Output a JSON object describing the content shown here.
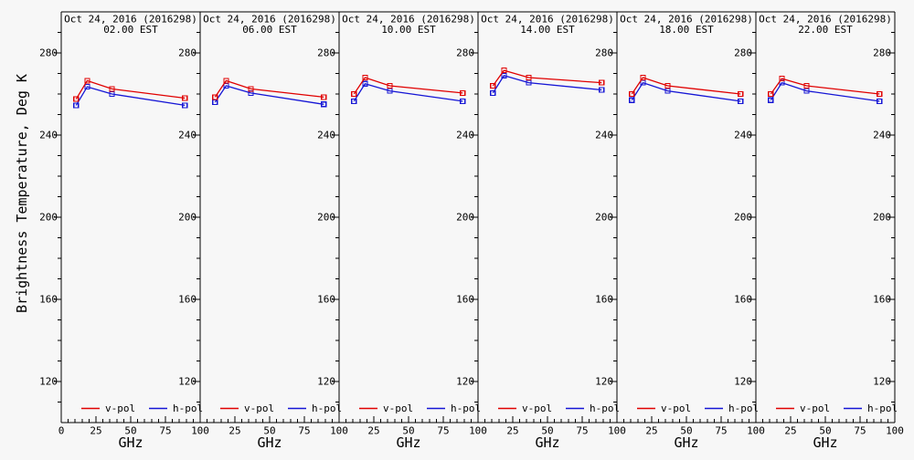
{
  "figure": {
    "y_axis_title": "Brightness Temperature, Deg K",
    "x_axis_title": "GHz",
    "date_title": "Oct 24, 2016 (2016298)",
    "background": "#f7f7f7",
    "colors": {
      "axis": "#000000",
      "v_pol": "#e00000",
      "h_pol": "#1515d5"
    },
    "legend": [
      {
        "label": "v-pol",
        "color_key": "v_pol"
      },
      {
        "label": "h-pol",
        "color_key": "h_pol"
      }
    ],
    "y_tick_labels": [
      "280",
      "240",
      "200",
      "160",
      "120"
    ],
    "x_tick_labels": [
      "0",
      "25",
      "50",
      "75",
      "100"
    ]
  },
  "chart_data": [
    {
      "type": "line",
      "title": "Oct 24, 2016 (2016298)",
      "subtitle": "02.00 EST",
      "xlabel": "GHz",
      "ylabel": "Brightness Temperature, Deg K",
      "x": [
        10.7,
        18.7,
        36.5,
        89
      ],
      "series": [
        {
          "name": "v-pol",
          "color": "#e00000",
          "values": [
            257.5,
            266.5,
            262.5,
            258
          ]
        },
        {
          "name": "h-pol",
          "color": "#1515d5",
          "values": [
            254.5,
            263.5,
            260,
            254.5
          ]
        }
      ],
      "xlim": [
        0,
        100
      ],
      "ylim": [
        100,
        300
      ],
      "x_major_ticks": [
        0,
        25,
        50,
        75,
        100
      ],
      "y_major_ticks": [
        120,
        160,
        200,
        240,
        280
      ],
      "x_minor_step": 5,
      "y_minor_step": 10,
      "legend_position": "bottom-inside",
      "grid": false
    },
    {
      "type": "line",
      "title": "Oct 24, 2016 (2016298)",
      "subtitle": "06.00 EST",
      "xlabel": "GHz",
      "ylabel": "Brightness Temperature, Deg K",
      "x": [
        10.7,
        18.7,
        36.5,
        89
      ],
      "series": [
        {
          "name": "v-pol",
          "color": "#e00000",
          "values": [
            258.5,
            266.5,
            262.5,
            258.5
          ]
        },
        {
          "name": "h-pol",
          "color": "#1515d5",
          "values": [
            256,
            264,
            260.5,
            255
          ]
        }
      ],
      "xlim": [
        0,
        100
      ],
      "ylim": [
        100,
        300
      ],
      "x_major_ticks": [
        0,
        25,
        50,
        75,
        100
      ],
      "y_major_ticks": [
        120,
        160,
        200,
        240,
        280
      ],
      "x_minor_step": 5,
      "y_minor_step": 10,
      "legend_position": "bottom-inside",
      "grid": false
    },
    {
      "type": "line",
      "title": "Oct 24, 2016 (2016298)",
      "subtitle": "10.00 EST",
      "xlabel": "GHz",
      "ylabel": "Brightness Temperature, Deg K",
      "x": [
        10.7,
        18.7,
        36.5,
        89
      ],
      "series": [
        {
          "name": "v-pol",
          "color": "#e00000",
          "values": [
            260,
            268,
            264,
            260.5
          ]
        },
        {
          "name": "h-pol",
          "color": "#1515d5",
          "values": [
            256.5,
            265,
            261.5,
            256.5
          ]
        }
      ],
      "xlim": [
        0,
        100
      ],
      "ylim": [
        100,
        300
      ],
      "x_major_ticks": [
        0,
        25,
        50,
        75,
        100
      ],
      "y_major_ticks": [
        120,
        160,
        200,
        240,
        280
      ],
      "x_minor_step": 5,
      "y_minor_step": 10,
      "legend_position": "bottom-inside",
      "grid": false
    },
    {
      "type": "line",
      "title": "Oct 24, 2016 (2016298)",
      "subtitle": "14.00 EST",
      "xlabel": "GHz",
      "ylabel": "Brightness Temperature, Deg K",
      "x": [
        10.7,
        18.7,
        36.5,
        89
      ],
      "series": [
        {
          "name": "v-pol",
          "color": "#e00000",
          "values": [
            264,
            271.5,
            268,
            265.5
          ]
        },
        {
          "name": "h-pol",
          "color": "#1515d5",
          "values": [
            260.5,
            269,
            265.5,
            262
          ]
        }
      ],
      "xlim": [
        0,
        100
      ],
      "ylim": [
        100,
        300
      ],
      "x_major_ticks": [
        0,
        25,
        50,
        75,
        100
      ],
      "y_major_ticks": [
        120,
        160,
        200,
        240,
        280
      ],
      "x_minor_step": 5,
      "y_minor_step": 10,
      "legend_position": "bottom-inside",
      "grid": false
    },
    {
      "type": "line",
      "title": "Oct 24, 2016 (2016298)",
      "subtitle": "18.00 EST",
      "xlabel": "GHz",
      "ylabel": "Brightness Temperature, Deg K",
      "x": [
        10.7,
        18.7,
        36.5,
        89
      ],
      "series": [
        {
          "name": "v-pol",
          "color": "#e00000",
          "values": [
            260,
            268,
            264,
            260
          ]
        },
        {
          "name": "h-pol",
          "color": "#1515d5",
          "values": [
            257,
            265.5,
            261.5,
            256.5
          ]
        }
      ],
      "xlim": [
        0,
        100
      ],
      "ylim": [
        100,
        300
      ],
      "x_major_ticks": [
        0,
        25,
        50,
        75,
        100
      ],
      "y_major_ticks": [
        120,
        160,
        200,
        240,
        280
      ],
      "x_minor_step": 5,
      "y_minor_step": 10,
      "legend_position": "bottom-inside",
      "grid": false
    },
    {
      "type": "line",
      "title": "Oct 24, 2016 (2016298)",
      "subtitle": "22.00 EST",
      "xlabel": "GHz",
      "ylabel": "Brightness Temperature, Deg K",
      "x": [
        10.7,
        18.7,
        36.5,
        89
      ],
      "series": [
        {
          "name": "v-pol",
          "color": "#e00000",
          "values": [
            260,
            267.5,
            264,
            260
          ]
        },
        {
          "name": "h-pol",
          "color": "#1515d5",
          "values": [
            257,
            265.5,
            261.5,
            256.5
          ]
        }
      ],
      "xlim": [
        0,
        100
      ],
      "ylim": [
        100,
        300
      ],
      "x_major_ticks": [
        0,
        25,
        50,
        75,
        100
      ],
      "y_major_ticks": [
        120,
        160,
        200,
        240,
        280
      ],
      "x_minor_step": 5,
      "y_minor_step": 10,
      "legend_position": "bottom-inside",
      "grid": false
    }
  ]
}
